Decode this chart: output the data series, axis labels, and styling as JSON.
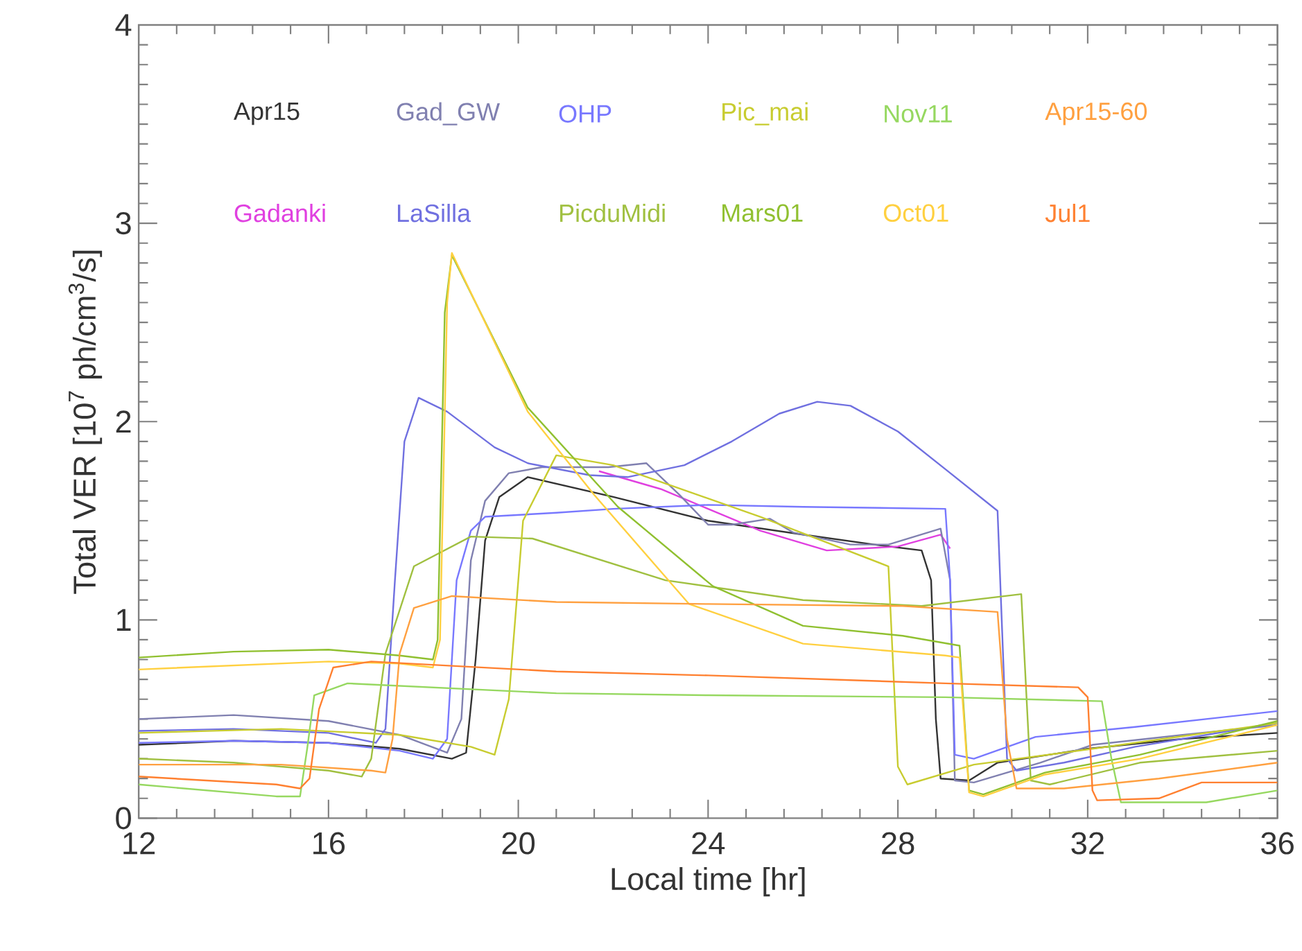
{
  "chart_data": {
    "type": "line",
    "xlabel": "Local time [hr]",
    "ylabel": "Total VER [10$^{7}$ ph/cm$^{3}$/s]",
    "xlim": [
      12,
      36
    ],
    "xticks": [
      12,
      16,
      20,
      24,
      28,
      32,
      36
    ],
    "ylim": [
      0,
      4
    ],
    "yticks": [
      0,
      1,
      2,
      3,
      4
    ],
    "grid": false,
    "legend": "top",
    "marker": "none",
    "line_style": "solid",
    "series": [
      {
        "name": "Apr15",
        "color": "#333333",
        "x": [
          12,
          14,
          16,
          17.5,
          18.6,
          18.9,
          19.1,
          19.3,
          19.6,
          20.2,
          22,
          24,
          26,
          27.5,
          28.5,
          28.7,
          28.8,
          28.9,
          29.5,
          30.1,
          32,
          34,
          36
        ],
        "values": [
          0.37,
          0.39,
          0.38,
          0.35,
          0.3,
          0.33,
          0.8,
          1.4,
          1.62,
          1.72,
          1.62,
          1.5,
          1.43,
          1.38,
          1.35,
          1.2,
          0.5,
          0.2,
          0.19,
          0.28,
          0.35,
          0.4,
          0.43
        ]
      },
      {
        "name": "Gadanki",
        "color": "#e040e0",
        "x": [
          21.7,
          23,
          24,
          25.1,
          26.5,
          28,
          28.9,
          29.1
        ],
        "values": [
          1.75,
          1.66,
          1.56,
          1.45,
          1.35,
          1.37,
          1.43,
          1.36
        ]
      },
      {
        "name": "Gad_GW",
        "color": "#8080b0",
        "x": [
          12,
          14,
          16,
          17.5,
          18.5,
          18.8,
          19,
          19.3,
          19.8,
          20.5,
          21.9,
          22.7,
          23.4,
          24,
          24.5,
          25.3,
          25.8,
          27,
          27.8,
          28.9,
          29.1,
          29.2,
          29.6,
          31,
          32.1,
          34,
          36
        ],
        "values": [
          0.5,
          0.52,
          0.49,
          0.42,
          0.33,
          0.5,
          1.3,
          1.6,
          1.74,
          1.77,
          1.77,
          1.79,
          1.63,
          1.48,
          1.48,
          1.51,
          1.44,
          1.38,
          1.38,
          1.46,
          1.2,
          0.19,
          0.18,
          0.28,
          0.37,
          0.42,
          0.47
        ]
      },
      {
        "name": "LaSilla",
        "color": "#7070e0",
        "x": [
          12,
          14,
          16,
          17,
          17.2,
          17.4,
          17.6,
          17.9,
          18.5,
          19.5,
          20.2,
          21.5,
          22.3,
          23.5,
          24.5,
          25.5,
          26.3,
          27,
          28,
          29,
          30.1,
          30.3,
          30.5,
          31.5,
          33,
          36
        ],
        "values": [
          0.44,
          0.45,
          0.43,
          0.38,
          0.45,
          1.2,
          1.9,
          2.12,
          2.05,
          1.87,
          1.79,
          1.73,
          1.72,
          1.78,
          1.9,
          2.04,
          2.1,
          2.08,
          1.95,
          1.76,
          1.55,
          0.3,
          0.24,
          0.28,
          0.36,
          0.48
        ]
      },
      {
        "name": "OHP",
        "color": "#7878ff",
        "x": [
          12,
          14,
          16,
          17.5,
          18.2,
          18.5,
          18.7,
          19,
          19.3,
          20.8,
          22,
          24,
          26,
          29,
          29.1,
          29.2,
          29.6,
          30.9,
          33,
          36
        ],
        "values": [
          0.38,
          0.39,
          0.38,
          0.34,
          0.3,
          0.4,
          1.2,
          1.45,
          1.52,
          1.54,
          1.56,
          1.58,
          1.57,
          1.56,
          1.2,
          0.32,
          0.3,
          0.41,
          0.46,
          0.54
        ]
      },
      {
        "name": "PicduMidi",
        "color": "#a0c040",
        "x": [
          12,
          14,
          16,
          16.7,
          16.9,
          17.2,
          17.8,
          19,
          20.3,
          23.1,
          26,
          28.5,
          30.6,
          30.8,
          31.2,
          33.1,
          36
        ],
        "values": [
          0.3,
          0.28,
          0.24,
          0.21,
          0.3,
          0.83,
          1.27,
          1.42,
          1.41,
          1.2,
          1.1,
          1.07,
          1.13,
          0.19,
          0.17,
          0.28,
          0.34
        ]
      },
      {
        "name": "Pic_mai",
        "color": "#c8cc30",
        "x": [
          12,
          15,
          17.5,
          19,
          19.5,
          19.8,
          20.1,
          20.8,
          22,
          25.1,
          27.8,
          28,
          28.2,
          29.6,
          32.1,
          36
        ],
        "values": [
          0.43,
          0.45,
          0.42,
          0.36,
          0.32,
          0.6,
          1.5,
          1.83,
          1.78,
          1.52,
          1.27,
          0.26,
          0.17,
          0.27,
          0.35,
          0.48
        ]
      },
      {
        "name": "Mars01",
        "color": "#90c030",
        "x": [
          12,
          14,
          16,
          17.5,
          18.2,
          18.3,
          18.45,
          18.6,
          20.2,
          22.1,
          24.1,
          26,
          28.1,
          29.3,
          29.5,
          29.8,
          31.1,
          33.1,
          36
        ],
        "values": [
          0.81,
          0.84,
          0.85,
          0.82,
          0.8,
          0.9,
          2.55,
          2.84,
          2.07,
          1.57,
          1.17,
          0.97,
          0.92,
          0.87,
          0.14,
          0.12,
          0.23,
          0.32,
          0.49
        ]
      },
      {
        "name": "Nov11",
        "color": "#96d860",
        "x": [
          12,
          14.9,
          15.4,
          15.55,
          15.7,
          16.4,
          20.8,
          24,
          29,
          32.3,
          32.5,
          32.7,
          34.5,
          36
        ],
        "values": [
          0.17,
          0.11,
          0.11,
          0.35,
          0.62,
          0.68,
          0.63,
          0.62,
          0.61,
          0.59,
          0.3,
          0.08,
          0.08,
          0.14
        ]
      },
      {
        "name": "Oct01",
        "color": "#ffd040",
        "x": [
          12,
          14,
          16,
          17.5,
          18.2,
          18.35,
          18.5,
          18.6,
          20.2,
          21.6,
          23.6,
          26,
          29,
          29.3,
          29.5,
          29.8,
          31.1,
          33.1,
          36
        ],
        "values": [
          0.75,
          0.77,
          0.79,
          0.78,
          0.76,
          0.9,
          2.6,
          2.85,
          2.05,
          1.63,
          1.08,
          0.88,
          0.82,
          0.81,
          0.13,
          0.11,
          0.22,
          0.3,
          0.47
        ]
      },
      {
        "name": "Apr15-60",
        "color": "#ffa040",
        "x": [
          12,
          15,
          16.9,
          17.2,
          17.35,
          17.5,
          17.8,
          18.6,
          20.8,
          24,
          28.1,
          30.1,
          30.3,
          30.5,
          31.5,
          33.5,
          36
        ],
        "values": [
          0.27,
          0.27,
          0.24,
          0.23,
          0.4,
          0.83,
          1.06,
          1.12,
          1.09,
          1.08,
          1.07,
          1.04,
          0.4,
          0.15,
          0.15,
          0.2,
          0.28
        ]
      },
      {
        "name": "Jul1",
        "color": "#ff8030",
        "x": [
          12,
          14.9,
          15.4,
          15.6,
          15.8,
          16.1,
          16.9,
          20.8,
          24,
          29,
          31.8,
          32,
          32.1,
          32.2,
          33.5,
          34.4,
          36
        ],
        "values": [
          0.21,
          0.17,
          0.15,
          0.2,
          0.55,
          0.76,
          0.79,
          0.74,
          0.72,
          0.68,
          0.66,
          0.61,
          0.14,
          0.09,
          0.1,
          0.18,
          0.18
        ]
      }
    ]
  }
}
